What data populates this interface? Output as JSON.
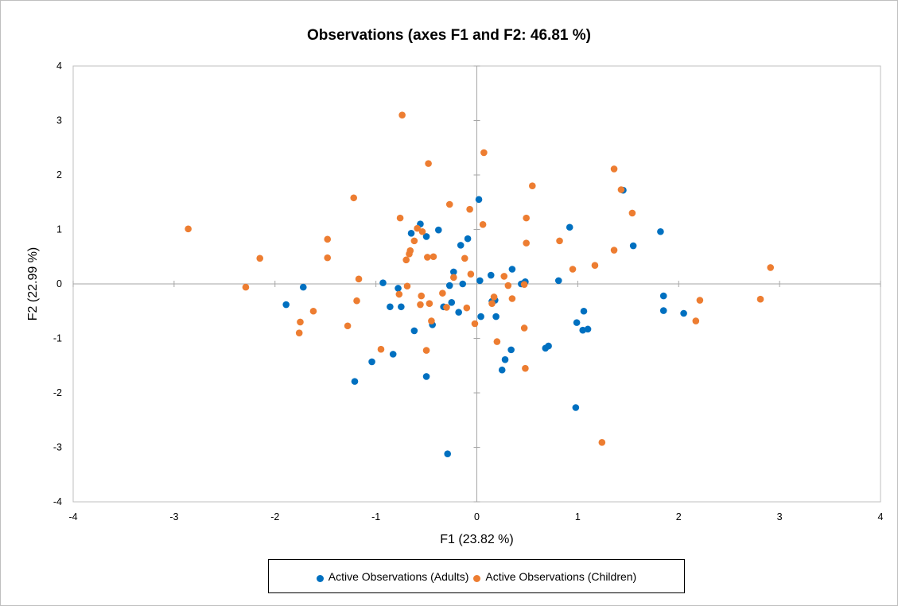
{
  "chart_data": {
    "type": "scatter",
    "title": "Observations (axes F1 and F2: 46.81 %)",
    "xlabel": "F1 (23.82 %)",
    "ylabel": "F2 (22.99 %)",
    "xlim": [
      -4,
      4
    ],
    "ylim": [
      -4,
      4
    ],
    "x_ticks": [
      "-4",
      "-3",
      "-2",
      "-1",
      "0",
      "1",
      "2",
      "3",
      "4"
    ],
    "y_ticks": [
      "4",
      "3",
      "2",
      "1",
      "0",
      "-1",
      "-2",
      "-3",
      "-4"
    ],
    "legend_position": "bottom",
    "series": [
      {
        "name": "Active Observations (Adults)",
        "color": "#0070c0",
        "points": [
          [
            -1.89,
            -0.38
          ],
          [
            -1.72,
            -0.06
          ],
          [
            -1.21,
            -1.79
          ],
          [
            -1.04,
            -1.43
          ],
          [
            -0.93,
            0.02
          ],
          [
            -0.86,
            -0.42
          ],
          [
            -0.83,
            -1.29
          ],
          [
            -0.78,
            -0.08
          ],
          [
            -0.75,
            -0.42
          ],
          [
            -0.65,
            0.93
          ],
          [
            -0.62,
            -0.86
          ],
          [
            -0.56,
            1.1
          ],
          [
            -0.5,
            0.87
          ],
          [
            -0.5,
            -1.7
          ],
          [
            -0.44,
            -0.75
          ],
          [
            -0.38,
            0.99
          ],
          [
            -0.33,
            -0.42
          ],
          [
            -0.29,
            -3.12
          ],
          [
            -0.27,
            -0.03
          ],
          [
            -0.25,
            -0.34
          ],
          [
            -0.23,
            0.22
          ],
          [
            -0.18,
            -0.52
          ],
          [
            -0.16,
            0.71
          ],
          [
            -0.14,
            0.0
          ],
          [
            -0.09,
            0.83
          ],
          [
            0.02,
            1.55
          ],
          [
            0.03,
            0.06
          ],
          [
            0.04,
            -0.6
          ],
          [
            0.14,
            0.16
          ],
          [
            0.15,
            -0.32
          ],
          [
            0.18,
            -0.3
          ],
          [
            0.19,
            -0.6
          ],
          [
            0.25,
            -1.58
          ],
          [
            0.28,
            -1.39
          ],
          [
            0.34,
            -1.21
          ],
          [
            0.35,
            0.27
          ],
          [
            0.44,
            0.0
          ],
          [
            0.47,
            0.02
          ],
          [
            0.48,
            0.04
          ],
          [
            0.68,
            -1.18
          ],
          [
            0.71,
            -1.14
          ],
          [
            0.81,
            0.06
          ],
          [
            0.92,
            1.04
          ],
          [
            0.98,
            -2.27
          ],
          [
            0.99,
            -0.71
          ],
          [
            1.05,
            -0.85
          ],
          [
            1.06,
            -0.5
          ],
          [
            1.1,
            -0.83
          ],
          [
            1.45,
            1.72
          ],
          [
            1.55,
            0.7
          ],
          [
            1.82,
            0.96
          ],
          [
            1.85,
            -0.22
          ],
          [
            1.85,
            -0.49
          ],
          [
            2.05,
            -0.54
          ]
        ]
      },
      {
        "name": "Active Observations (Children)",
        "color": "#ed7d31",
        "points": [
          [
            -2.86,
            1.01
          ],
          [
            -2.29,
            -0.06
          ],
          [
            -2.15,
            0.47
          ],
          [
            -1.76,
            -0.9
          ],
          [
            -1.75,
            -0.7
          ],
          [
            -1.62,
            -0.5
          ],
          [
            -1.48,
            0.82
          ],
          [
            -1.48,
            0.48
          ],
          [
            -1.28,
            -0.77
          ],
          [
            -1.22,
            1.58
          ],
          [
            -1.19,
            -0.31
          ],
          [
            -1.17,
            0.09
          ],
          [
            -0.95,
            -1.2
          ],
          [
            -0.77,
            -0.19
          ],
          [
            -0.76,
            1.21
          ],
          [
            -0.74,
            3.1
          ],
          [
            -0.7,
            0.44
          ],
          [
            -0.69,
            -0.04
          ],
          [
            -0.67,
            0.55
          ],
          [
            -0.66,
            0.61
          ],
          [
            -0.62,
            0.79
          ],
          [
            -0.59,
            1.02
          ],
          [
            -0.56,
            -0.38
          ],
          [
            -0.55,
            -0.22
          ],
          [
            -0.54,
            0.96
          ],
          [
            -0.5,
            -1.22
          ],
          [
            -0.49,
            0.49
          ],
          [
            -0.48,
            2.21
          ],
          [
            -0.47,
            -0.36
          ],
          [
            -0.45,
            -0.68
          ],
          [
            -0.43,
            0.5
          ],
          [
            -0.34,
            -0.17
          ],
          [
            -0.3,
            -0.43
          ],
          [
            -0.27,
            1.46
          ],
          [
            -0.23,
            0.12
          ],
          [
            -0.12,
            0.47
          ],
          [
            -0.1,
            -0.44
          ],
          [
            -0.07,
            1.37
          ],
          [
            -0.06,
            0.18
          ],
          [
            -0.02,
            -0.73
          ],
          [
            0.06,
            1.09
          ],
          [
            0.07,
            2.41
          ],
          [
            0.2,
            -1.06
          ],
          [
            0.27,
            0.14
          ],
          [
            0.31,
            -0.03
          ],
          [
            0.35,
            -0.27
          ],
          [
            0.47,
            -0.01
          ],
          [
            0.47,
            -0.81
          ],
          [
            0.49,
            1.21
          ],
          [
            0.49,
            0.75
          ],
          [
            0.48,
            -1.55
          ],
          [
            0.55,
            1.8
          ],
          [
            0.82,
            0.79
          ],
          [
            0.95,
            0.27
          ],
          [
            1.17,
            0.34
          ],
          [
            1.24,
            -2.91
          ],
          [
            1.36,
            0.62
          ],
          [
            1.36,
            2.11
          ],
          [
            1.43,
            1.73
          ],
          [
            1.54,
            1.3
          ],
          [
            2.17,
            -0.68
          ],
          [
            2.21,
            -0.3
          ],
          [
            2.81,
            -0.28
          ],
          [
            2.91,
            0.3
          ],
          [
            0.17,
            -0.24
          ],
          [
            0.15,
            -0.36
          ]
        ]
      }
    ]
  }
}
